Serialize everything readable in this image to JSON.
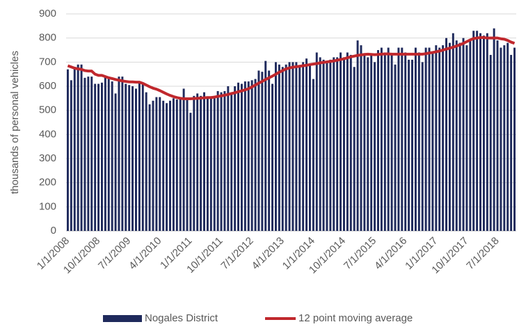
{
  "chart_data": {
    "type": "bar",
    "y_label": "thousands of personal vehicles",
    "categories": [
      "1/1/2008",
      null,
      null,
      null,
      null,
      null,
      null,
      null,
      null,
      "10/1/2008",
      null,
      null,
      null,
      null,
      null,
      null,
      null,
      null,
      "7/1/2009",
      null,
      null,
      null,
      null,
      null,
      null,
      null,
      null,
      "4/1/2010",
      null,
      null,
      null,
      null,
      null,
      null,
      null,
      null,
      "1/1/2011",
      null,
      null,
      null,
      null,
      null,
      null,
      null,
      null,
      "10/1/2011",
      null,
      null,
      null,
      null,
      null,
      null,
      null,
      null,
      "7/1/2012",
      null,
      null,
      null,
      null,
      null,
      null,
      null,
      null,
      "4/1/2013",
      null,
      null,
      null,
      null,
      null,
      null,
      null,
      null,
      "1/1/2014",
      null,
      null,
      null,
      null,
      null,
      null,
      null,
      null,
      "10/1/2014",
      null,
      null,
      null,
      null,
      null,
      null,
      null,
      null,
      "7/1/2015",
      null,
      null,
      null,
      null,
      null,
      null,
      null,
      null,
      "4/1/2016",
      null,
      null,
      null,
      null,
      null,
      null,
      null,
      null,
      "1/1/2017",
      null,
      null,
      null,
      null,
      null,
      null,
      null,
      null,
      "10/1/2017",
      null,
      null,
      null,
      null,
      null,
      null,
      null,
      null,
      "7/1/2018",
      null,
      null,
      null,
      null,
      null
    ],
    "series": [
      {
        "name": "Nogales District",
        "type": "bar",
        "color": "#1f2a5c",
        "values": [
          670,
          625,
          680,
          690,
          690,
          635,
          640,
          640,
          610,
          610,
          615,
          640,
          640,
          620,
          570,
          640,
          640,
          610,
          605,
          600,
          590,
          620,
          615,
          575,
          525,
          540,
          555,
          555,
          540,
          530,
          540,
          550,
          545,
          550,
          590,
          550,
          490,
          560,
          570,
          560,
          575,
          550,
          550,
          560,
          580,
          575,
          580,
          600,
          570,
          600,
          615,
          610,
          620,
          620,
          625,
          630,
          665,
          660,
          705,
          665,
          610,
          700,
          690,
          680,
          690,
          700,
          700,
          700,
          680,
          700,
          715,
          690,
          630,
          740,
          720,
          710,
          700,
          710,
          720,
          720,
          740,
          720,
          740,
          730,
          680,
          790,
          770,
          730,
          720,
          730,
          700,
          750,
          760,
          740,
          760,
          730,
          690,
          760,
          760,
          740,
          710,
          710,
          760,
          740,
          700,
          760,
          760,
          740,
          770,
          760,
          770,
          800,
          780,
          820,
          790,
          780,
          800,
          770,
          790,
          830,
          830,
          820,
          810,
          820,
          730,
          840,
          790,
          760,
          770,
          780,
          730,
          760
        ]
      },
      {
        "name": "12 point moving average",
        "type": "line",
        "color": "#c0282d",
        "values": [
          685,
          680,
          675,
          672,
          670,
          665,
          663,
          663,
          650,
          645,
          645,
          640,
          635,
          632,
          628,
          625,
          622,
          620,
          618,
          618,
          617,
          617,
          612,
          605,
          598,
          592,
          588,
          582,
          575,
          568,
          562,
          557,
          553,
          550,
          548,
          548,
          548,
          549,
          550,
          551,
          552,
          553,
          553,
          555,
          558,
          560,
          563,
          566,
          570,
          573,
          577,
          581,
          585,
          590,
          597,
          605,
          613,
          620,
          628,
          635,
          642,
          650,
          658,
          665,
          672,
          676,
          679,
          681,
          683,
          685,
          687,
          690,
          692,
          694,
          697,
          699,
          701,
          703,
          705,
          708,
          711,
          714,
          718,
          722,
          725,
          728,
          730,
          732,
          733,
          732,
          731,
          732,
          733,
          734,
          734,
          733,
          733,
          733,
          733,
          733,
          733,
          733,
          733,
          733,
          733,
          735,
          738,
          740,
          743,
          746,
          750,
          754,
          758,
          762,
          767,
          772,
          778,
          785,
          792,
          798,
          800,
          802,
          802,
          800,
          800,
          800,
          800,
          797,
          795,
          790,
          783,
          778
        ]
      }
    ],
    "ylim": [
      0,
      900
    ],
    "yticks": [
      0,
      100,
      200,
      300,
      400,
      500,
      600,
      700,
      800,
      900
    ],
    "grid": true
  }
}
